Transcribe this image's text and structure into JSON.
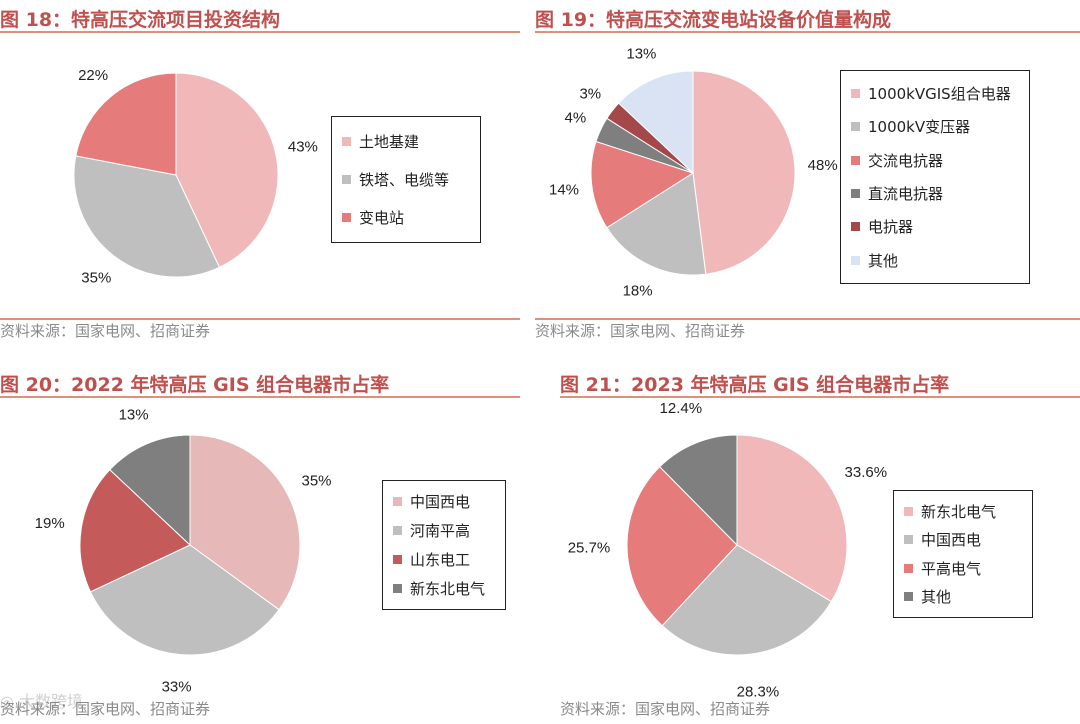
{
  "charts": [
    {
      "title": "图 18：特高压交流项目投资结构",
      "source": "资料来源：国家电网、招商证券",
      "legend": [
        "土地基建",
        "铁塔、电缆等",
        "变电站"
      ],
      "labels": [
        "43%",
        "35%",
        "22%"
      ]
    },
    {
      "title": "图 19：特高压交流变电站设备价值量构成",
      "source": "资料来源：国家电网、招商证券",
      "legend": [
        "1000kVGIS组合电器",
        "1000kV变压器",
        "交流电抗器",
        "直流电抗器",
        "电抗器",
        "其他"
      ],
      "labels": [
        "48%",
        "18%",
        "14%",
        "4%",
        "3%",
        "13%"
      ]
    },
    {
      "title": "图 20：2022 年特高压 GIS 组合电器市占率",
      "source": "资料来源：国家电网、招商证券",
      "legend": [
        "中国西电",
        "河南平高",
        "山东电工",
        "新东北电气"
      ],
      "labels": [
        "35%",
        "33%",
        "19%",
        "13%"
      ]
    },
    {
      "title": "图 21：2023 年特高压 GIS 组合电器市占率",
      "source": "资料来源：国家电网、招商证券",
      "legend": [
        "新东北电气",
        "中国西电",
        "平高电气",
        "其他"
      ],
      "labels": [
        "33.6%",
        "28.3%",
        "25.7%",
        "12.4%"
      ]
    }
  ],
  "chart_data": [
    {
      "type": "pie",
      "title": "图 18：特高压交流项目投资结构",
      "categories": [
        "土地基建",
        "铁塔、电缆等",
        "变电站"
      ],
      "values": [
        43,
        35,
        22
      ],
      "colors": [
        "#f0b8b8",
        "#bfbfbf",
        "#e57b7b"
      ],
      "legend": "right"
    },
    {
      "type": "pie",
      "title": "图 19：特高压交流变电站设备价值量构成",
      "categories": [
        "1000kVGIS组合电器",
        "1000kV变压器",
        "交流电抗器",
        "直流电抗器",
        "电抗器",
        "其他"
      ],
      "values": [
        48,
        18,
        14,
        4,
        3,
        13
      ],
      "colors": [
        "#f0b8b8",
        "#bfbfbf",
        "#e57b7b",
        "#7f7f7f",
        "#a5484a",
        "#dae3f3"
      ],
      "legend": "right"
    },
    {
      "type": "pie",
      "title": "图 20：2022 年特高压 GIS 组合电器市占率",
      "categories": [
        "中国西电",
        "河南平高",
        "山东电工",
        "新东北电气"
      ],
      "values": [
        35,
        33,
        19,
        13
      ],
      "colors": [
        "#e6b8b7",
        "#bfbfbf",
        "#c55a5a",
        "#7f7f7f"
      ],
      "legend": "right"
    },
    {
      "type": "pie",
      "title": "图 21：2023 年特高压 GIS 组合电器市占率",
      "categories": [
        "新东北电气",
        "中国西电",
        "平高电气",
        "其他"
      ],
      "values": [
        33.6,
        28.3,
        25.7,
        12.4
      ],
      "colors": [
        "#f0b8b8",
        "#bfbfbf",
        "#e57b7b",
        "#7f7f7f"
      ],
      "legend": "right"
    }
  ]
}
